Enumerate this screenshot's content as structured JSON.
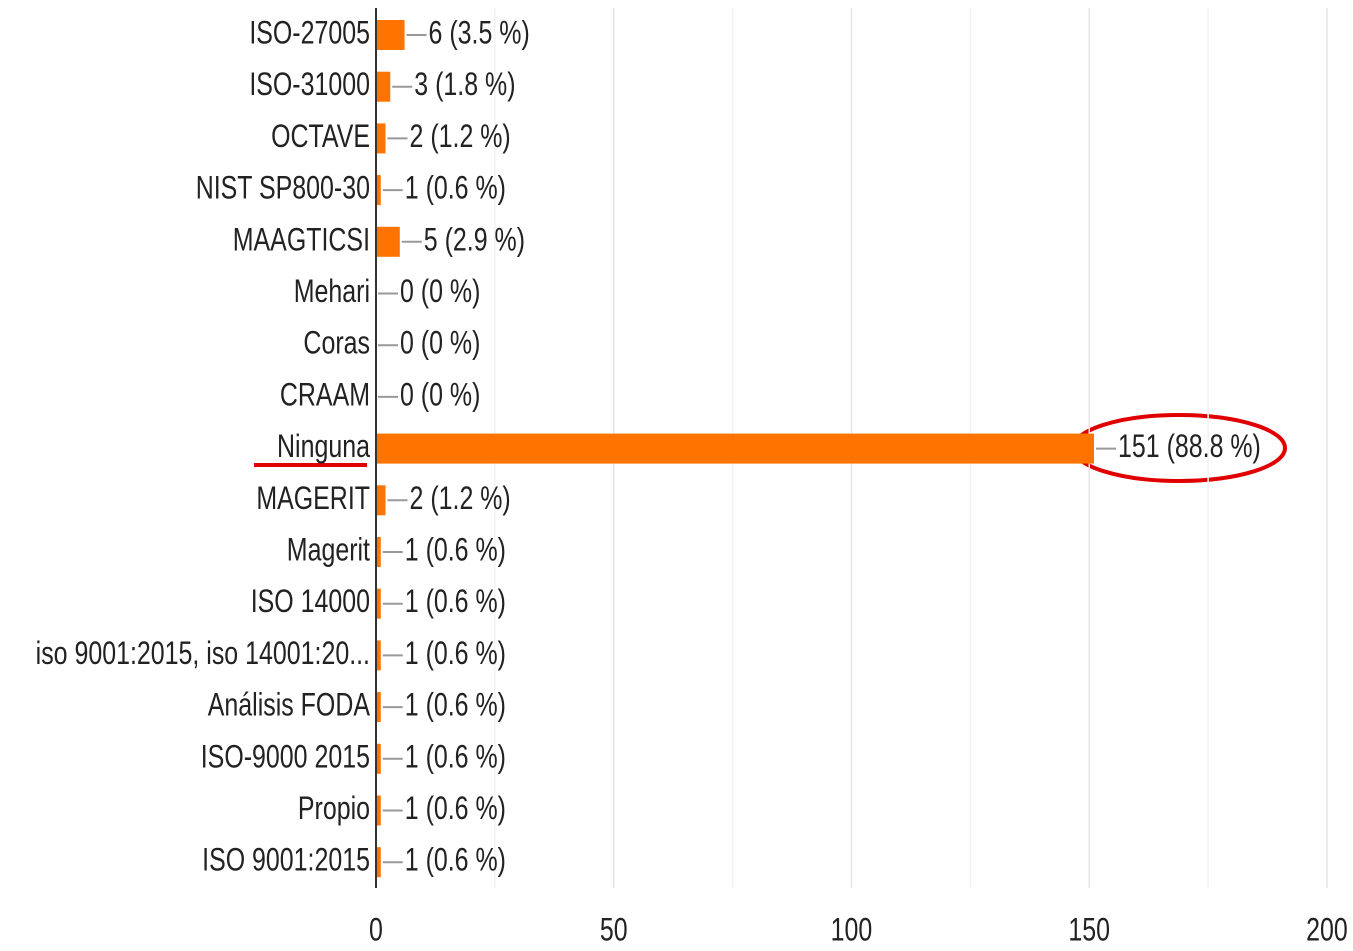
{
  "chart_data": {
    "type": "hbar",
    "categories": [
      "ISO-27005",
      "ISO-31000",
      "OCTAVE",
      "NIST SP800-30",
      "MAAGTICSI",
      "Mehari",
      "Coras",
      "CRAAM",
      "Ninguna",
      "MAGERIT",
      "Magerit",
      "ISO 14000",
      "iso 9001:2015, iso 14001:20...",
      "Análisis FODA",
      "ISO-9000 2015",
      "Propio",
      "ISO 9001:2015"
    ],
    "values": [
      6,
      3,
      2,
      1,
      5,
      0,
      0,
      0,
      151,
      2,
      1,
      1,
      1,
      1,
      1,
      1,
      1
    ],
    "value_labels": [
      "6 (3.5 %)",
      "3 (1.8 %)",
      "2 (1.2 %)",
      "1 (0.6 %)",
      "5 (2.9 %)",
      "0 (0 %)",
      "0 (0 %)",
      "0 (0 %)",
      "151 (88.8 %)",
      "2 (1.2 %)",
      "1 (0.6 %)",
      "1 (0.6 %)",
      "1 (0.6 %)",
      "1 (0.6 %)",
      "1 (0.6 %)",
      "1 (0.6 %)",
      "1 (0.6 %)"
    ],
    "color": "#ff7300",
    "xlim": [
      0,
      200
    ],
    "xticks": [
      0,
      50,
      100,
      150,
      200
    ],
    "minor_xticks": [
      25,
      75,
      125,
      175
    ],
    "grid": true
  }
}
